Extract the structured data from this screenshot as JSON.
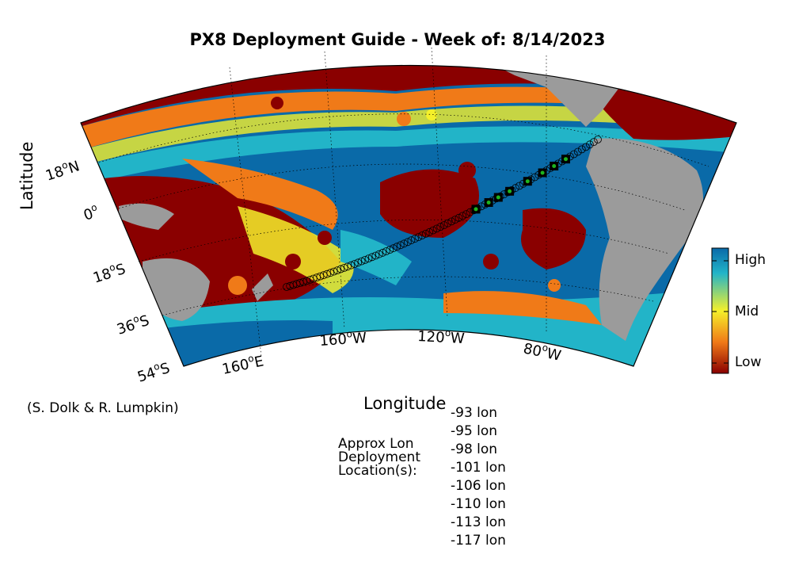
{
  "title": "PX8 Deployment Guide - Week of: 8/14/2023",
  "axes": {
    "xlabel": "Longitude",
    "ylabel": "Latitude",
    "lat_ticks": [
      {
        "deg": "18",
        "hemi": "N"
      },
      {
        "deg": "0",
        "hemi": ""
      },
      {
        "deg": "18",
        "hemi": "S"
      },
      {
        "deg": "36",
        "hemi": "S"
      },
      {
        "deg": "54",
        "hemi": "S"
      }
    ],
    "lon_ticks": [
      {
        "deg": "160",
        "hemi": "E"
      },
      {
        "deg": "160",
        "hemi": "W"
      },
      {
        "deg": "120",
        "hemi": "W"
      },
      {
        "deg": "80",
        "hemi": "W"
      }
    ]
  },
  "colorbar": {
    "high": "High",
    "mid": "Mid",
    "low": "Low"
  },
  "colors": {
    "high": "#0a6aa8",
    "cyan": "#22b4c8",
    "mid": "#f5f02a",
    "orange": "#f07a18",
    "low": "#8a0000",
    "land": "#9b9b9b",
    "marker_good": "#1eb41e"
  },
  "credit": "(S. Dolk & R. Lumpkin)",
  "deployment": {
    "label_lines": [
      "Approx Lon",
      "Deployment",
      "Location(s):"
    ],
    "locations": [
      "-93 lon",
      "-95 lon",
      "-98 lon",
      "-101 lon",
      "-106 lon",
      "-110 lon",
      "-113 lon",
      "-117 lon"
    ]
  }
}
